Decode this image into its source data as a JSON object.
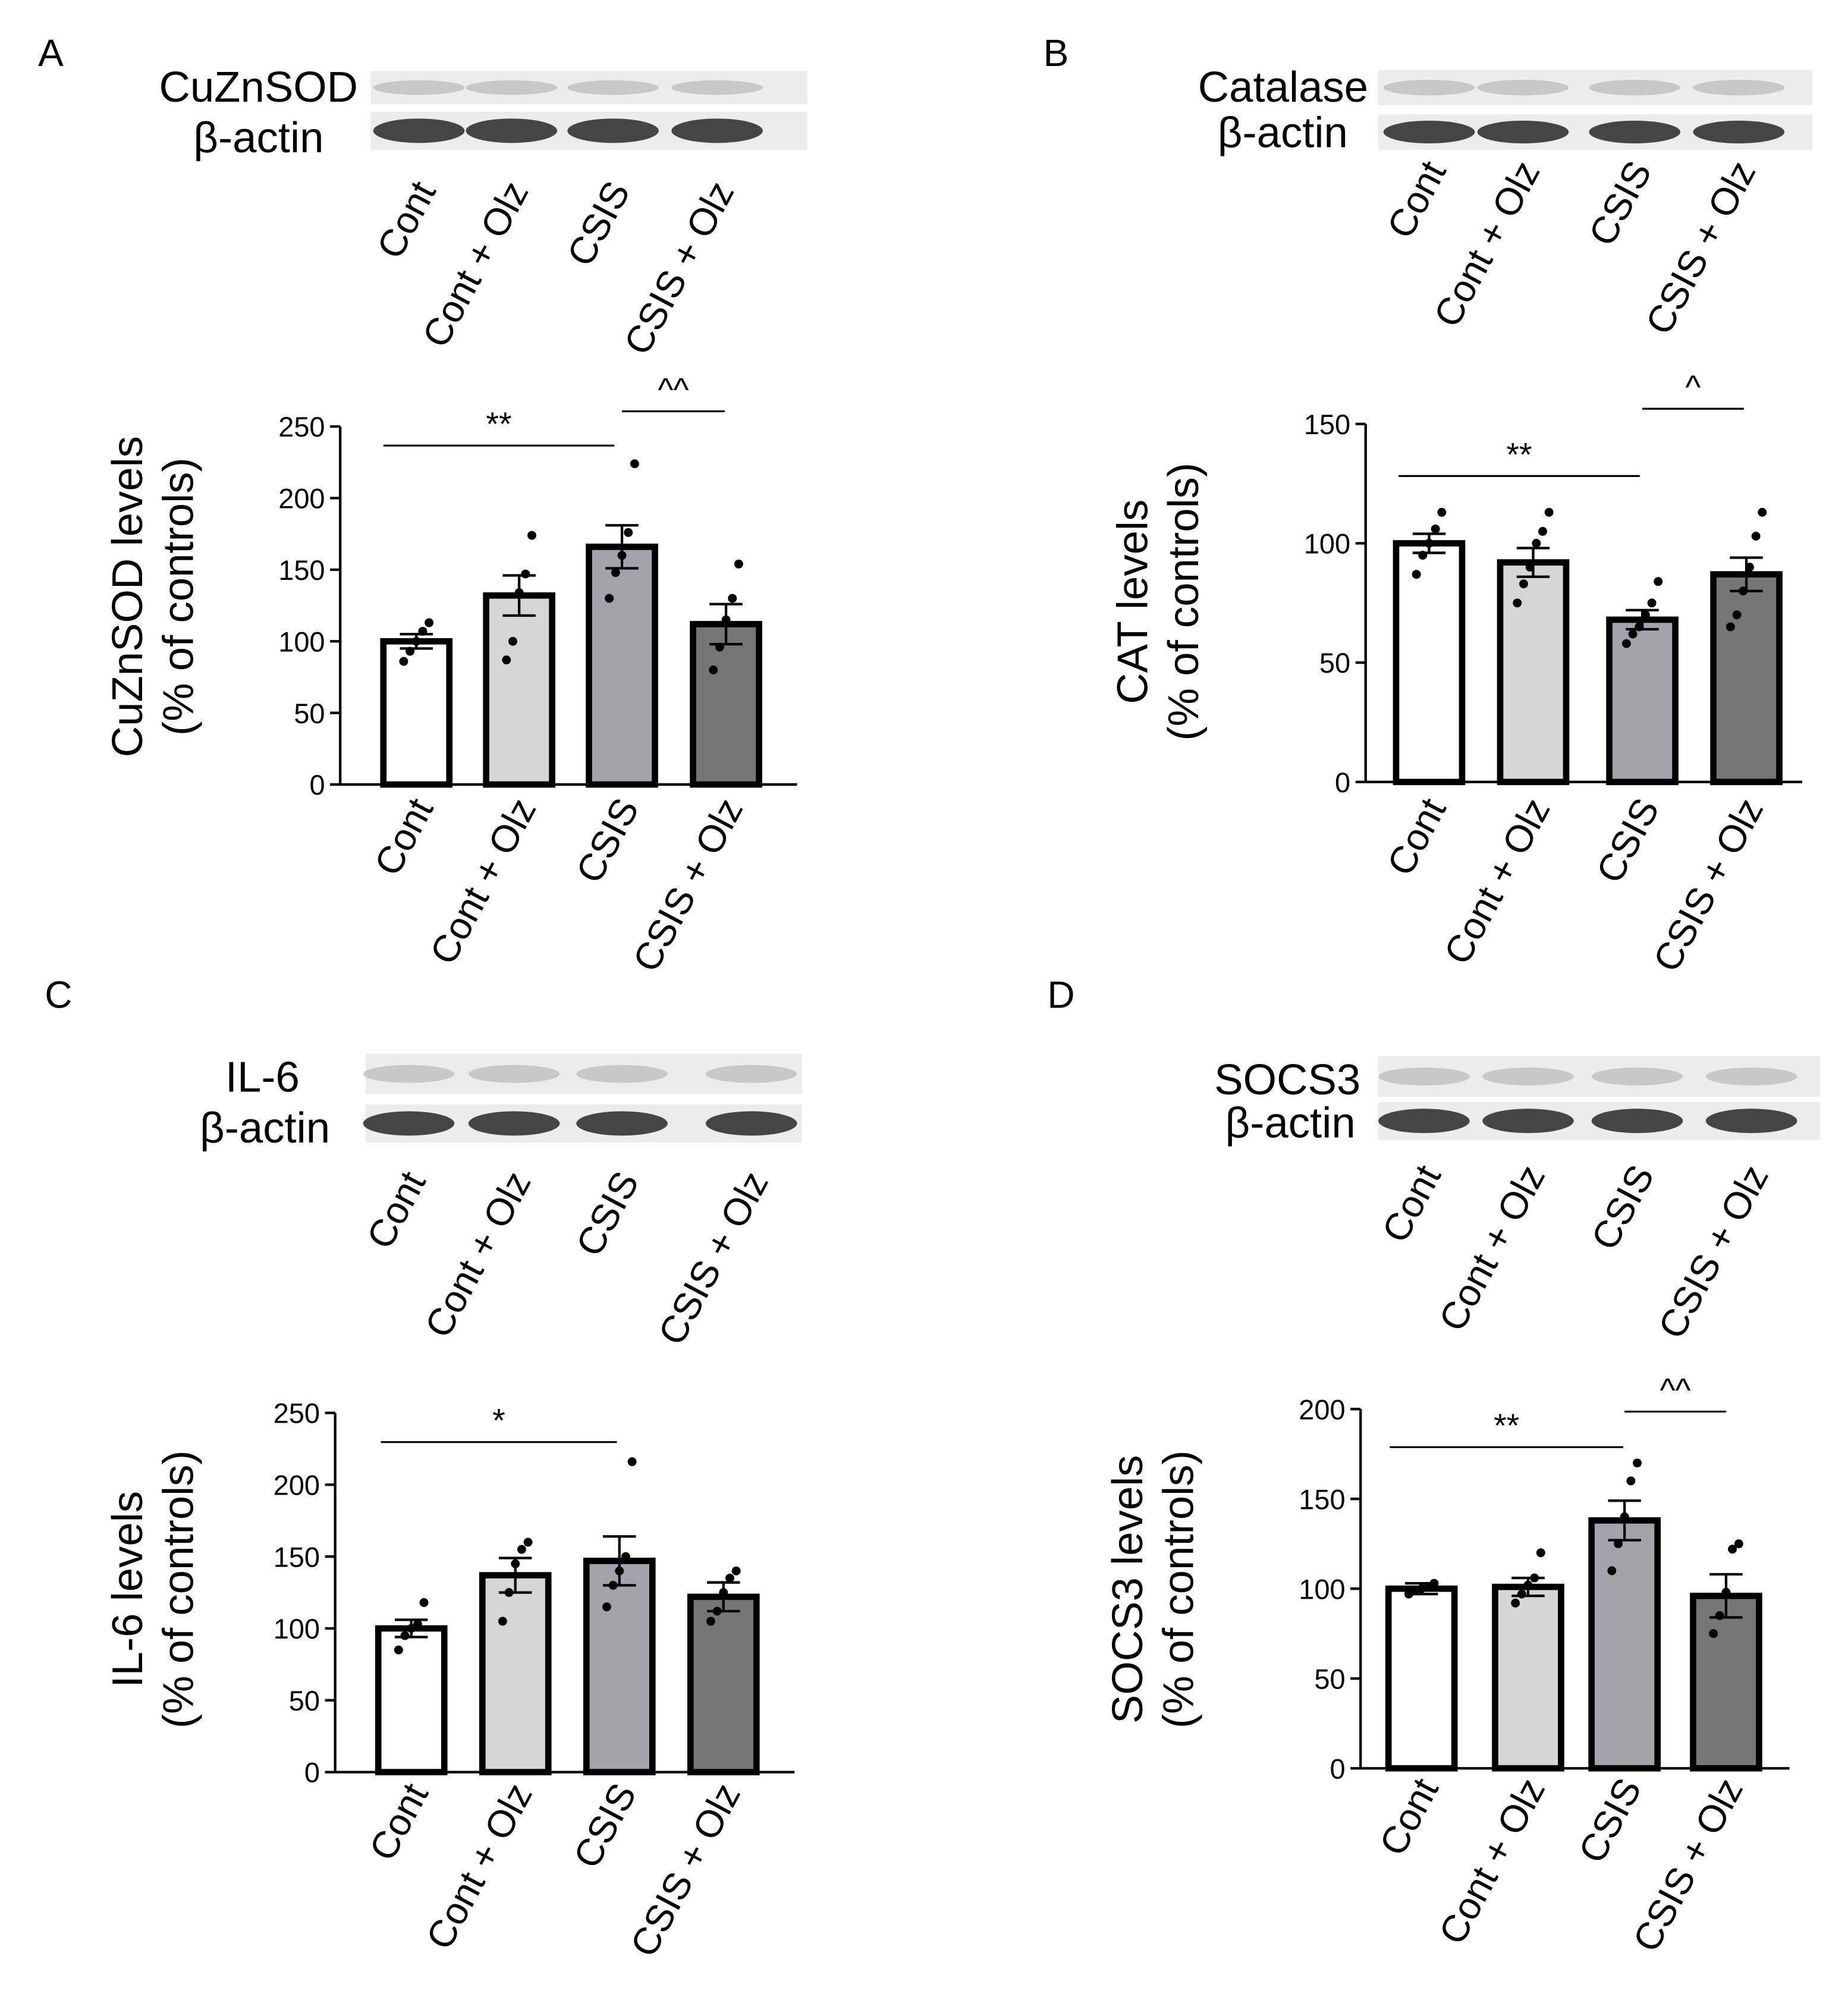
{
  "chart_data": [
    {
      "type": "bar",
      "panel_label": "A",
      "blot_labels": [
        "CuZnSOD",
        "β-actin"
      ],
      "categories": [
        "Cont",
        "Cont + Olz",
        "CSIS",
        "CSIS + Olz"
      ],
      "values": [
        100,
        132,
        166,
        112
      ],
      "errors": [
        5,
        14,
        15,
        14
      ],
      "points": [
        [
          86,
          93,
          100,
          107,
          113
        ],
        [
          87,
          100,
          134,
          147,
          174
        ],
        [
          130,
          148,
          160,
          176,
          224
        ],
        [
          80,
          96,
          115,
          130,
          154
        ]
      ],
      "ylabel_lines": [
        "CuZnSOD levels",
        "(% of controls)"
      ],
      "ylim": [
        0,
        250
      ],
      "yticks": [
        0,
        50,
        100,
        150,
        200,
        250
      ],
      "significance": [
        {
          "from": 0,
          "to": 2,
          "label": "**"
        },
        {
          "from": 2,
          "to": 3,
          "label": "^^"
        }
      ]
    },
    {
      "type": "bar",
      "panel_label": "B",
      "blot_labels": [
        "Catalase",
        "β-actin"
      ],
      "categories": [
        "Cont",
        "Cont + Olz",
        "CSIS",
        "CSIS + Olz"
      ],
      "values": [
        100,
        92,
        68,
        87
      ],
      "errors": [
        4,
        6,
        4,
        7
      ],
      "points": [
        [
          87,
          95,
          100,
          106,
          113
        ],
        [
          75,
          83,
          90,
          100,
          105,
          113
        ],
        [
          58,
          62,
          65,
          70,
          75,
          84
        ],
        [
          65,
          70,
          80,
          90,
          103,
          113
        ]
      ],
      "ylabel_lines": [
        "CAT levels",
        "(% of controls)"
      ],
      "ylim": [
        0,
        150
      ],
      "yticks": [
        0,
        50,
        100,
        150
      ],
      "significance": [
        {
          "from": 0,
          "to": 2,
          "label": "**"
        },
        {
          "from": 2,
          "to": 3,
          "label": "^"
        }
      ]
    },
    {
      "type": "bar",
      "panel_label": "C",
      "blot_labels": [
        "IL-6",
        "β-actin"
      ],
      "categories": [
        "Cont",
        "Cont + Olz",
        "CSIS",
        "CSIS + Olz"
      ],
      "values": [
        100,
        137,
        147,
        122
      ],
      "errors": [
        6,
        12,
        17,
        10
      ],
      "points": [
        [
          85,
          95,
          100,
          103,
          118
        ],
        [
          105,
          125,
          145,
          155,
          160
        ],
        [
          115,
          130,
          140,
          150,
          216
        ],
        [
          105,
          112,
          125,
          135,
          140
        ]
      ],
      "ylabel_lines": [
        "IL-6 levels",
        "(% of controls)"
      ],
      "ylim": [
        0,
        250
      ],
      "yticks": [
        0,
        50,
        100,
        150,
        200,
        250
      ],
      "significance": [
        {
          "from": 0,
          "to": 2,
          "label": "*"
        }
      ]
    },
    {
      "type": "bar",
      "panel_label": "D",
      "blot_labels": [
        "SOCS3",
        "β-actin"
      ],
      "categories": [
        "Cont",
        "Cont + Olz",
        "CSIS",
        "CSIS + Olz"
      ],
      "values": [
        100,
        101,
        138,
        96
      ],
      "errors": [
        3,
        5,
        11,
        12
      ],
      "points": [
        [
          97,
          99,
          100,
          101,
          103
        ],
        [
          92,
          97,
          102,
          106,
          120
        ],
        [
          110,
          125,
          140,
          160,
          170
        ],
        [
          75,
          85,
          98,
          122,
          125
        ]
      ],
      "ylabel_lines": [
        "SOCS3 levels",
        "(% of controls)"
      ],
      "ylim": [
        0,
        200
      ],
      "yticks": [
        0,
        50,
        100,
        150,
        200
      ],
      "significance": [
        {
          "from": 0,
          "to": 2,
          "label": "**"
        },
        {
          "from": 2,
          "to": 3,
          "label": "^^"
        }
      ]
    }
  ],
  "colors": {
    "bars": [
      "#ffffff",
      "#d6d6d6",
      "#a4a3ac",
      "#767676"
    ],
    "ink": "#000000",
    "blot_bg": "#ececec",
    "band_target": "#b9b9b9",
    "band_actin": "#333333"
  }
}
